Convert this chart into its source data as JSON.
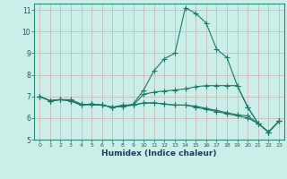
{
  "xlabel": "Humidex (Indice chaleur)",
  "xlim": [
    -0.5,
    23.5
  ],
  "ylim": [
    5,
    11.3
  ],
  "yticks": [
    5,
    6,
    7,
    8,
    9,
    10,
    11
  ],
  "xticks": [
    0,
    1,
    2,
    3,
    4,
    5,
    6,
    7,
    8,
    9,
    10,
    11,
    12,
    13,
    14,
    15,
    16,
    17,
    18,
    19,
    20,
    21,
    22,
    23
  ],
  "bg_color": "#cceee8",
  "grid_color": "#c8b0b0",
  "line_color": "#1a7a6a",
  "line_width": 0.8,
  "marker": "+",
  "marker_size": 4.0,
  "lines": [
    [
      7.0,
      6.8,
      6.85,
      6.8,
      6.6,
      6.65,
      6.6,
      6.5,
      6.55,
      6.65,
      7.3,
      8.2,
      8.75,
      9.0,
      11.1,
      10.85,
      10.4,
      9.2,
      8.8,
      7.5,
      6.5,
      5.75,
      5.35,
      5.85
    ],
    [
      7.0,
      6.8,
      6.85,
      6.85,
      6.65,
      6.6,
      6.6,
      6.5,
      6.6,
      6.6,
      7.1,
      7.2,
      7.25,
      7.3,
      7.35,
      7.45,
      7.5,
      7.5,
      7.5,
      7.5,
      6.5,
      5.75,
      5.35,
      5.85
    ],
    [
      7.0,
      6.8,
      6.85,
      6.8,
      6.6,
      6.65,
      6.6,
      6.5,
      6.55,
      6.6,
      6.7,
      6.7,
      6.65,
      6.6,
      6.6,
      6.55,
      6.45,
      6.35,
      6.25,
      6.15,
      6.1,
      5.75,
      5.35,
      5.85
    ],
    [
      7.0,
      6.8,
      6.85,
      6.8,
      6.6,
      6.65,
      6.6,
      6.5,
      6.55,
      6.6,
      6.7,
      6.7,
      6.65,
      6.6,
      6.6,
      6.5,
      6.4,
      6.3,
      6.2,
      6.1,
      6.0,
      5.75,
      5.35,
      5.85
    ]
  ]
}
